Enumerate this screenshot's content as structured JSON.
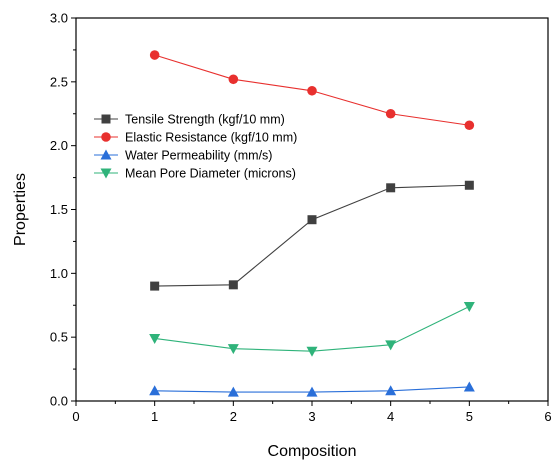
{
  "chart_data": {
    "type": "line",
    "xlabel": "Composition",
    "ylabel": "Properties",
    "xlim": [
      0,
      6
    ],
    "ylim": [
      0.0,
      3.0
    ],
    "xticks": [
      "0",
      "1",
      "2",
      "3",
      "4",
      "5",
      "6"
    ],
    "yticks": [
      "0.0",
      "0.5",
      "1.0",
      "1.5",
      "2.0",
      "2.5",
      "3.0"
    ],
    "grid": false,
    "legend_position": "upper-left",
    "x": [
      1,
      2,
      3,
      4,
      5
    ],
    "series": [
      {
        "name": "Tensile Strength (kgf/10 mm)",
        "values": [
          0.9,
          0.91,
          1.42,
          1.67,
          1.69
        ],
        "color": "#404040",
        "marker": "square"
      },
      {
        "name": "Elastic Resistance (kgf/10 mm)",
        "values": [
          2.71,
          2.52,
          2.43,
          2.25,
          2.16
        ],
        "color": "#e8302e",
        "marker": "circle"
      },
      {
        "name": "Water Permeability (mm/s)",
        "values": [
          0.08,
          0.07,
          0.07,
          0.08,
          0.11
        ],
        "color": "#2a6fd9",
        "marker": "triangle-up"
      },
      {
        "name": "Mean Pore Diameter (microns)",
        "values": [
          0.49,
          0.41,
          0.39,
          0.44,
          0.74
        ],
        "color": "#2fb37a",
        "marker": "triangle-down"
      }
    ]
  }
}
